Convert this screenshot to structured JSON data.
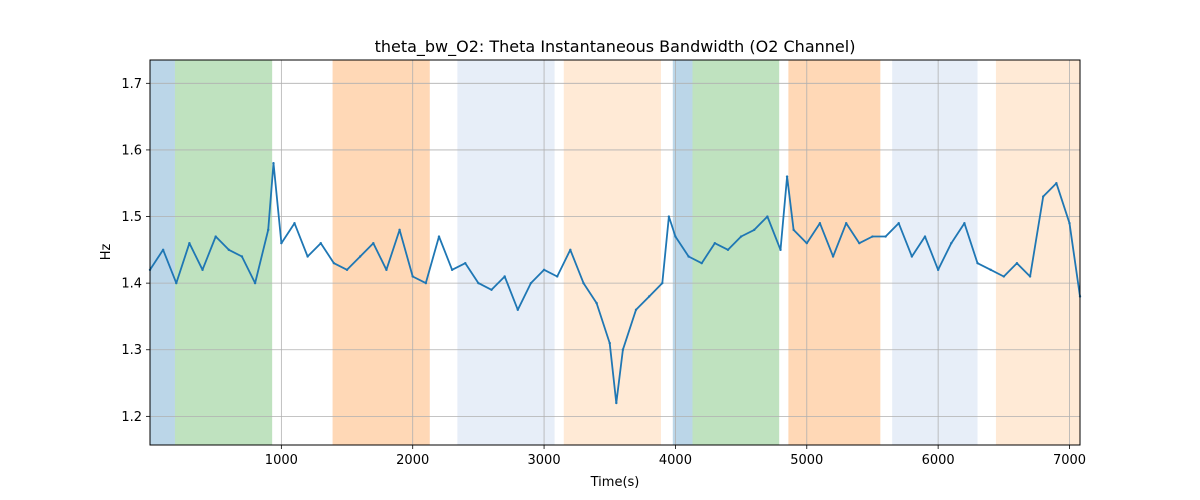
{
  "chart_data": {
    "type": "line",
    "title": "theta_bw_O2: Theta Instantaneous Bandwidth (O2 Channel)",
    "xlabel": "Time(s)",
    "ylabel": "Hz",
    "xlim": [
      0,
      7080
    ],
    "ylim": [
      1.157,
      1.735
    ],
    "xticks": [
      1000,
      2000,
      3000,
      4000,
      5000,
      6000,
      7000
    ],
    "yticks": [
      1.2,
      1.3,
      1.4,
      1.5,
      1.6,
      1.7
    ],
    "grid": true,
    "bands": [
      {
        "start": 0,
        "end": 190,
        "color": "#1f77b4",
        "opacity": 0.3
      },
      {
        "start": 190,
        "end": 930,
        "color": "#2ca02c",
        "opacity": 0.3
      },
      {
        "start": 1390,
        "end": 2130,
        "color": "#ff7f0e",
        "opacity": 0.3
      },
      {
        "start": 2340,
        "end": 3080,
        "color": "#aec7e8",
        "opacity": 0.3
      },
      {
        "start": 3150,
        "end": 3890,
        "color": "#ffbb78",
        "opacity": 0.3
      },
      {
        "start": 3980,
        "end": 4130,
        "color": "#1f77b4",
        "opacity": 0.3
      },
      {
        "start": 4130,
        "end": 4790,
        "color": "#2ca02c",
        "opacity": 0.3
      },
      {
        "start": 4860,
        "end": 5560,
        "color": "#ff7f0e",
        "opacity": 0.3
      },
      {
        "start": 5650,
        "end": 6300,
        "color": "#aec7e8",
        "opacity": 0.3
      },
      {
        "start": 6440,
        "end": 7080,
        "color": "#ffbb78",
        "opacity": 0.3
      }
    ],
    "series": [
      {
        "color": "#1f77b4",
        "x": [
          0,
          100,
          200,
          300,
          400,
          500,
          600,
          700,
          800,
          900,
          940,
          1000,
          1100,
          1200,
          1300,
          1400,
          1500,
          1600,
          1700,
          1800,
          1900,
          2000,
          2100,
          2200,
          2300,
          2400,
          2500,
          2600,
          2700,
          2800,
          2900,
          3000,
          3100,
          3200,
          3300,
          3400,
          3500,
          3550,
          3600,
          3700,
          3800,
          3900,
          3950,
          4000,
          4100,
          4200,
          4300,
          4400,
          4500,
          4600,
          4700,
          4800,
          4850,
          4900,
          5000,
          5100,
          5200,
          5300,
          5400,
          5500,
          5600,
          5700,
          5800,
          5900,
          6000,
          6100,
          6200,
          6300,
          6400,
          6500,
          6600,
          6700,
          6800,
          6900,
          7000,
          7080
        ],
        "y": [
          1.42,
          1.45,
          1.4,
          1.46,
          1.42,
          1.47,
          1.45,
          1.44,
          1.4,
          1.48,
          1.58,
          1.46,
          1.49,
          1.44,
          1.46,
          1.43,
          1.42,
          1.44,
          1.46,
          1.42,
          1.48,
          1.41,
          1.4,
          1.47,
          1.42,
          1.43,
          1.4,
          1.39,
          1.41,
          1.36,
          1.4,
          1.42,
          1.41,
          1.45,
          1.4,
          1.37,
          1.31,
          1.22,
          1.3,
          1.36,
          1.38,
          1.4,
          1.5,
          1.47,
          1.44,
          1.43,
          1.46,
          1.45,
          1.47,
          1.48,
          1.5,
          1.45,
          1.56,
          1.48,
          1.46,
          1.49,
          1.44,
          1.49,
          1.46,
          1.47,
          1.47,
          1.49,
          1.44,
          1.47,
          1.42,
          1.46,
          1.49,
          1.43,
          1.42,
          1.41,
          1.43,
          1.41,
          1.53,
          1.55,
          1.49,
          1.38
        ]
      }
    ]
  }
}
